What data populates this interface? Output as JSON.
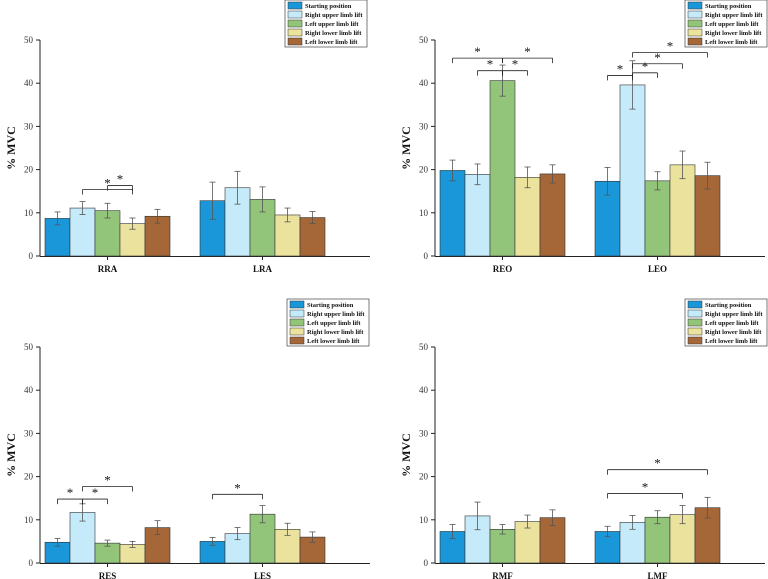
{
  "series_names": [
    "Starting position",
    "Right upper limb lift",
    "Left upper limb lift",
    "Right lower limb lift",
    "Left lower limb lift"
  ],
  "series_colors": [
    "#1a97d8",
    "#c5ebfa",
    "#92c47a",
    "#ebe29e",
    "#a56738"
  ],
  "chart_data": [
    {
      "type": "bar",
      "ylabel": "% MVC",
      "ylim": [
        0,
        50
      ],
      "yticks": [
        "0",
        "10",
        "20",
        "30",
        "40",
        "50"
      ],
      "categories": [
        "RRA",
        "LRA"
      ],
      "series": [
        {
          "name": "Starting position",
          "values": [
            8.7,
            12.8
          ],
          "errors": [
            1.5,
            4.3
          ]
        },
        {
          "name": "Right upper limb lift",
          "values": [
            11.1,
            15.8
          ],
          "errors": [
            1.5,
            3.8
          ]
        },
        {
          "name": "Left upper limb lift",
          "values": [
            10.5,
            13.1
          ],
          "errors": [
            1.7,
            2.9
          ]
        },
        {
          "name": "Right lower limb lift",
          "values": [
            7.5,
            9.5
          ],
          "errors": [
            1.3,
            1.6
          ]
        },
        {
          "name": "Left lower limb lift",
          "values": [
            9.2,
            8.9
          ],
          "errors": [
            1.6,
            1.4
          ]
        }
      ],
      "significance": [
        {
          "cat": 0,
          "from": 3,
          "to": 1,
          "y": 15.4,
          "label": "*"
        },
        {
          "cat": 0,
          "from": 3,
          "to": 2,
          "y": 16.3,
          "label": "*"
        }
      ]
    },
    {
      "type": "bar",
      "ylabel": "% MVC",
      "ylim": [
        0,
        50
      ],
      "yticks": [
        "0",
        "10",
        "20",
        "30",
        "40",
        "50"
      ],
      "categories": [
        "REO",
        "LEO"
      ],
      "series": [
        {
          "name": "Starting position",
          "values": [
            19.8,
            17.3
          ],
          "errors": [
            2.4,
            3.2
          ]
        },
        {
          "name": "Right upper limb lift",
          "values": [
            18.9,
            39.6
          ],
          "errors": [
            2.4,
            5.6
          ]
        },
        {
          "name": "Left upper limb lift",
          "values": [
            40.6,
            17.4
          ],
          "errors": [
            3.6,
            2.1
          ]
        },
        {
          "name": "Right lower limb lift",
          "values": [
            18.2,
            21.1
          ],
          "errors": [
            2.4,
            3.2
          ]
        },
        {
          "name": "Left lower limb lift",
          "values": [
            19.0,
            18.6
          ],
          "errors": [
            2.1,
            3.1
          ]
        }
      ],
      "significance": [
        {
          "cat": 0,
          "from": 2,
          "to": 0,
          "y": 45.8,
          "label": "*"
        },
        {
          "cat": 0,
          "from": 2,
          "to": 1,
          "y": 42.9,
          "label": "*"
        },
        {
          "cat": 0,
          "from": 2,
          "to": 3,
          "y": 42.9,
          "label": "*"
        },
        {
          "cat": 0,
          "from": 2,
          "to": 4,
          "y": 45.8,
          "label": "*"
        },
        {
          "cat": 1,
          "from": 1,
          "to": 0,
          "y": 41.8,
          "label": "*"
        },
        {
          "cat": 1,
          "from": 1,
          "to": 2,
          "y": 42.4,
          "label": "*"
        },
        {
          "cat": 1,
          "from": 1,
          "to": 3,
          "y": 44.5,
          "label": "*"
        },
        {
          "cat": 1,
          "from": 1,
          "to": 4,
          "y": 47.1,
          "label": "*"
        }
      ]
    },
    {
      "type": "bar",
      "ylabel": "% MVC",
      "ylim": [
        0,
        50
      ],
      "yticks": [
        "0",
        "10",
        "20",
        "30",
        "40",
        "50"
      ],
      "categories": [
        "RES",
        "LES"
      ],
      "series": [
        {
          "name": "Starting position",
          "values": [
            4.8,
            5.0
          ],
          "errors": [
            0.9,
            0.9
          ]
        },
        {
          "name": "Right upper limb lift",
          "values": [
            11.7,
            6.8
          ],
          "errors": [
            2.0,
            1.4
          ]
        },
        {
          "name": "Left upper limb lift",
          "values": [
            4.6,
            11.3
          ],
          "errors": [
            0.7,
            2.0
          ]
        },
        {
          "name": "Right lower limb lift",
          "values": [
            4.3,
            7.8
          ],
          "errors": [
            0.7,
            1.4
          ]
        },
        {
          "name": "Left lower limb lift",
          "values": [
            8.2,
            6.0
          ],
          "errors": [
            1.6,
            1.2
          ]
        }
      ],
      "significance": [
        {
          "cat": 0,
          "from": 1,
          "to": 0,
          "y": 14.8,
          "label": "*"
        },
        {
          "cat": 0,
          "from": 1,
          "to": 2,
          "y": 14.8,
          "label": "*"
        },
        {
          "cat": 0,
          "from": 1,
          "to": 3,
          "y": 17.7,
          "label": "*"
        },
        {
          "cat": 1,
          "from": 2,
          "to": 0,
          "y": 15.9,
          "label": "*"
        }
      ]
    },
    {
      "type": "bar",
      "ylabel": "% MVC",
      "ylim": [
        0,
        50
      ],
      "yticks": [
        "0",
        "10",
        "20",
        "30",
        "40",
        "50"
      ],
      "categories": [
        "RMF",
        "LMF"
      ],
      "series": [
        {
          "name": "Starting position",
          "values": [
            7.3,
            7.3
          ],
          "errors": [
            1.6,
            1.2
          ]
        },
        {
          "name": "Right upper limb lift",
          "values": [
            10.9,
            9.4
          ],
          "errors": [
            3.2,
            1.6
          ]
        },
        {
          "name": "Left upper limb lift",
          "values": [
            7.8,
            10.6
          ],
          "errors": [
            1.1,
            1.5
          ]
        },
        {
          "name": "Right lower limb lift",
          "values": [
            9.6,
            11.2
          ],
          "errors": [
            1.5,
            2.1
          ]
        },
        {
          "name": "Left lower limb lift",
          "values": [
            10.5,
            12.8
          ],
          "errors": [
            1.8,
            2.4
          ]
        }
      ],
      "significance": [
        {
          "cat": 1,
          "from": 0,
          "to": 3,
          "y": 16.1,
          "label": "*"
        },
        {
          "cat": 1,
          "from": 0,
          "to": 4,
          "y": 21.6,
          "label": "*"
        }
      ]
    }
  ]
}
